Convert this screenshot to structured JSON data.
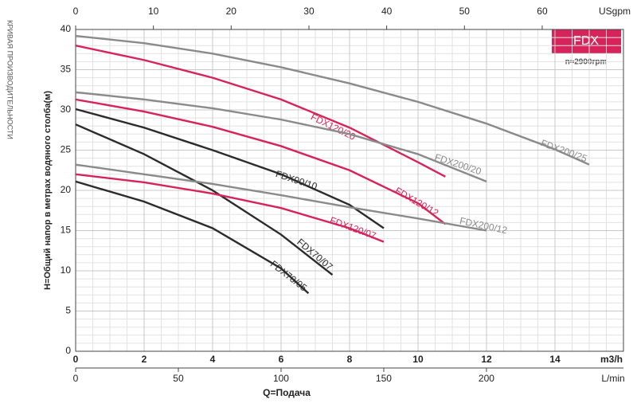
{
  "chart_data": {
    "type": "line",
    "title": "FDX",
    "subtitle": "n≈2900rpm",
    "side_label": "КРИВАЯ ПРОИЗВОДИТЕЛЬНОСТИ",
    "ylabel": "H=Общий напор в метрах водяного столба(м)",
    "xlabel": "Q=Подача",
    "xunit": "m3/h",
    "x2unit": "USgpm",
    "x3unit": "L/min",
    "xlim": [
      0,
      16
    ],
    "xticks": [
      0,
      2,
      4,
      6,
      8,
      10,
      12,
      14
    ],
    "x2lim": [
      0,
      70.45
    ],
    "x2ticks": [
      0,
      10,
      20,
      30,
      40,
      50,
      60
    ],
    "x3lim": [
      0,
      266.7
    ],
    "x3ticks": [
      0,
      50,
      100,
      150,
      200
    ],
    "ylim": [
      0,
      40
    ],
    "yticks": [
      0,
      5,
      10,
      15,
      20,
      25,
      30,
      35,
      40
    ],
    "grid": true,
    "series": [
      {
        "name": "FDX200/25",
        "color": "#8a8a8a",
        "x": [
          0,
          2,
          4,
          6,
          8,
          10,
          12,
          14,
          15
        ],
        "values": [
          39.2,
          38.3,
          37.0,
          35.3,
          33.3,
          31.0,
          28.3,
          25.1,
          23.2
        ]
      },
      {
        "name": "FDX120/20",
        "color": "#d6245a",
        "x": [
          0,
          2,
          4,
          6,
          8,
          10,
          10.8
        ],
        "values": [
          38.0,
          36.2,
          34.0,
          31.3,
          27.8,
          23.5,
          21.7
        ]
      },
      {
        "name": "FDX200/20",
        "color": "#8a8a8a",
        "x": [
          0,
          2,
          4,
          6,
          8,
          10,
          12
        ],
        "values": [
          32.2,
          31.3,
          30.2,
          28.8,
          27.0,
          24.5,
          21.1
        ]
      },
      {
        "name": "FDX120/12",
        "color": "#d6245a",
        "x": [
          0,
          2,
          4,
          6,
          8,
          10,
          10.8
        ],
        "values": [
          31.3,
          29.8,
          27.9,
          25.5,
          22.5,
          18.4,
          15.8
        ]
      },
      {
        "name": "FDX90/10",
        "color": "#2b2b2b",
        "x": [
          0,
          2,
          4,
          6,
          8,
          9
        ],
        "values": [
          30.1,
          27.8,
          25.0,
          22.0,
          18.2,
          15.3
        ]
      },
      {
        "name": "FDX70/07",
        "color": "#2b2b2b",
        "x": [
          0,
          2,
          4,
          6,
          7.5
        ],
        "values": [
          28.2,
          24.5,
          20.0,
          14.5,
          9.5
        ]
      },
      {
        "name": "FDX200/12",
        "color": "#8a8a8a",
        "x": [
          0,
          2,
          4,
          6,
          8,
          10,
          12
        ],
        "values": [
          23.2,
          22.0,
          20.8,
          19.4,
          17.9,
          16.5,
          15.0
        ]
      },
      {
        "name": "FDX120/07",
        "color": "#d6245a",
        "x": [
          0,
          2,
          4,
          6,
          8,
          9
        ],
        "values": [
          22.0,
          21.0,
          19.6,
          17.8,
          15.3,
          13.6
        ]
      },
      {
        "name": "FDX70/05",
        "color": "#2b2b2b",
        "x": [
          0,
          2,
          4,
          6,
          6.8
        ],
        "values": [
          21.1,
          18.6,
          15.3,
          10.3,
          7.2
        ]
      }
    ]
  }
}
